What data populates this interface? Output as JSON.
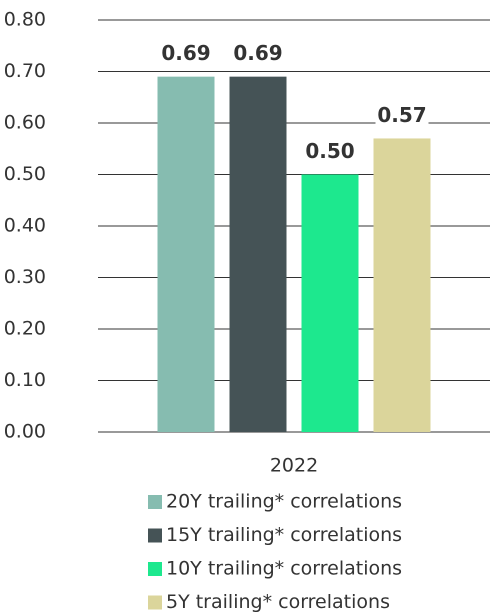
{
  "chart_data": {
    "type": "bar",
    "categories": [
      "2022"
    ],
    "series": [
      {
        "name": "20Y trailing* correlations",
        "color": "#86bcb0",
        "values": [
          0.69
        ],
        "value_labels": [
          "0.69"
        ]
      },
      {
        "name": "15Y trailing* correlations",
        "color": "#455356",
        "values": [
          0.69
        ],
        "value_labels": [
          "0.69"
        ]
      },
      {
        "name": "10Y trailing* correlations",
        "color": "#1de88e",
        "values": [
          0.5
        ],
        "value_labels": [
          "0.50"
        ]
      },
      {
        "name": "5Y trailing* correlations",
        "color": "#dbd59b",
        "values": [
          0.57
        ],
        "value_labels": [
          "0.57"
        ]
      }
    ],
    "ylim": [
      0,
      0.8
    ],
    "yticks": [
      {
        "value": 0,
        "label": "0.00"
      },
      {
        "value": 0.1,
        "label": "0.10"
      },
      {
        "value": 0.2,
        "label": "0.20"
      },
      {
        "value": 0.3,
        "label": "0.30"
      },
      {
        "value": 0.4,
        "label": "0.40"
      },
      {
        "value": 0.5,
        "label": "0.50"
      },
      {
        "value": 0.6,
        "label": "0.60"
      },
      {
        "value": 0.7,
        "label": "0.70"
      },
      {
        "value": 0.8,
        "label": "0.80"
      }
    ],
    "grid": true,
    "legend": "bottom"
  }
}
